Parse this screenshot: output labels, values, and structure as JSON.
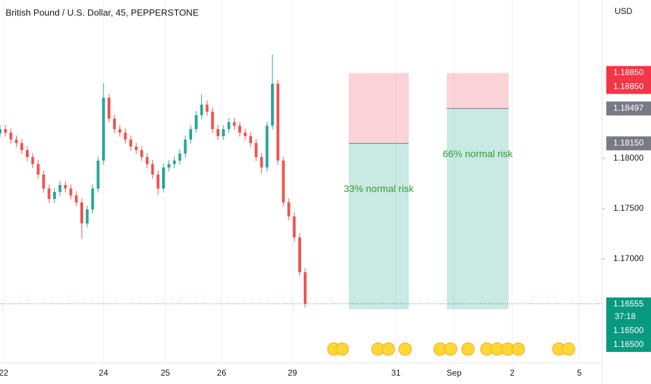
{
  "chart_data": {
    "type": "candlestick",
    "title": "British Pound / U.S. Dollar, 45, PEPPERSTONE",
    "currency": "USD",
    "up_color": "#26a69a",
    "down_color": "#ef5350",
    "grid": true,
    "xlim": [
      0,
      331.5
    ],
    "ylim": [
      1.15965,
      1.19576
    ],
    "xticks": [
      {
        "value": 2,
        "label": "22"
      },
      {
        "value": 57,
        "label": "24"
      },
      {
        "value": 91,
        "label": "25"
      },
      {
        "value": 122,
        "label": "26"
      },
      {
        "value": 161,
        "label": "29"
      },
      {
        "value": 218,
        "label": "31"
      },
      {
        "value": 250,
        "label": "Sep"
      },
      {
        "value": 282,
        "label": "2"
      },
      {
        "value": 319,
        "label": "5"
      }
    ],
    "yticks": [
      {
        "value": 1.17,
        "label": "1.17000"
      },
      {
        "value": 1.175,
        "label": "1.17500"
      },
      {
        "value": 1.18,
        "label": "1.18000"
      }
    ],
    "x": [
      0,
      3,
      6,
      9,
      12,
      15,
      18,
      21,
      24,
      27,
      30,
      33,
      36,
      39,
      42,
      45,
      48,
      51,
      54,
      57,
      60,
      63,
      66,
      69,
      72,
      75,
      78,
      81,
      84,
      87,
      90,
      93,
      96,
      99,
      102,
      105,
      108,
      111,
      114,
      117,
      120,
      123,
      126,
      129,
      132,
      135,
      138,
      141,
      144,
      147,
      150,
      153,
      156,
      159,
      162,
      165,
      168
    ],
    "open": [
      1.1825,
      1.18292,
      1.18257,
      1.18188,
      1.18153,
      1.18083,
      1.18014,
      1.17944,
      1.1784,
      1.17701,
      1.17597,
      1.17667,
      1.17736,
      1.17701,
      1.17632,
      1.17563,
      1.17354,
      1.17493,
      1.17701,
      1.17979,
      1.18604,
      1.18396,
      1.18292,
      1.18257,
      1.18188,
      1.18118,
      1.18083,
      1.18014,
      1.17944,
      1.1784,
      1.17701,
      1.1791,
      1.17944,
      1.17979,
      1.18049,
      1.18188,
      1.18292,
      1.18431,
      1.18535,
      1.18465,
      1.18292,
      1.18222,
      1.18292,
      1.18361,
      1.18326,
      1.18257,
      1.18222,
      1.18153,
      1.18014,
      1.1791,
      1.18326,
      1.18743,
      1.17979,
      1.17563,
      1.17424,
      1.17215,
      1.16868
    ],
    "high": [
      1.18332,
      1.18332,
      1.18297,
      1.18228,
      1.18193,
      1.18123,
      1.18054,
      1.17984,
      1.1788,
      1.17741,
      1.17707,
      1.17776,
      1.17776,
      1.17741,
      1.17672,
      1.17603,
      1.17533,
      1.17741,
      1.18019,
      1.1875,
      1.18644,
      1.18436,
      1.18332,
      1.18297,
      1.18228,
      1.18158,
      1.18123,
      1.18054,
      1.17984,
      1.1788,
      1.1795,
      1.17984,
      1.18019,
      1.18089,
      1.18228,
      1.18332,
      1.18471,
      1.1864,
      1.18575,
      1.18505,
      1.18332,
      1.18332,
      1.18401,
      1.18401,
      1.18366,
      1.18297,
      1.18262,
      1.18193,
      1.18054,
      1.18366,
      1.19035,
      1.18783,
      1.18019,
      1.17603,
      1.17464,
      1.17255,
      1.16908
    ],
    "low": [
      1.1821,
      1.18217,
      1.18148,
      1.18113,
      1.18043,
      1.17974,
      1.17904,
      1.178,
      1.17661,
      1.17557,
      1.17557,
      1.17627,
      1.17661,
      1.17592,
      1.17523,
      1.172,
      1.17314,
      1.17453,
      1.17661,
      1.17939,
      1.18356,
      1.18252,
      1.18217,
      1.18148,
      1.18078,
      1.18043,
      1.17974,
      1.17904,
      1.178,
      1.1764,
      1.17661,
      1.1787,
      1.17904,
      1.17939,
      1.18009,
      1.18148,
      1.18252,
      1.18391,
      1.18425,
      1.18252,
      1.18182,
      1.18182,
      1.18252,
      1.18286,
      1.18217,
      1.18182,
      1.18113,
      1.17974,
      1.1785,
      1.1787,
      1.18286,
      1.17939,
      1.17523,
      1.17384,
      1.17175,
      1.16828,
      1.16515
    ],
    "close": [
      1.18292,
      1.18257,
      1.18188,
      1.18153,
      1.18083,
      1.18014,
      1.17944,
      1.1784,
      1.17701,
      1.17597,
      1.17667,
      1.17736,
      1.17701,
      1.17632,
      1.17563,
      1.17354,
      1.17493,
      1.17701,
      1.17979,
      1.18604,
      1.18396,
      1.18292,
      1.18257,
      1.18188,
      1.18118,
      1.18083,
      1.18014,
      1.17944,
      1.1784,
      1.17701,
      1.1791,
      1.17944,
      1.17979,
      1.18049,
      1.18188,
      1.18292,
      1.18431,
      1.18535,
      1.18465,
      1.18292,
      1.18222,
      1.18292,
      1.18361,
      1.18326,
      1.18257,
      1.18222,
      1.18153,
      1.18014,
      1.1791,
      1.18326,
      1.18743,
      1.17979,
      1.17563,
      1.17424,
      1.17215,
      1.16868,
      1.16555
    ],
    "last_price": {
      "value": 1.16555,
      "label": "1.16555"
    },
    "countdown": "37:18",
    "positions": [
      {
        "label": "33% normal risk",
        "x_start": 192,
        "x_end": 225,
        "stop": {
          "value": 1.1885,
          "label": "1.18850"
        },
        "entry": {
          "value": 1.1815,
          "label": "1.18150"
        },
        "target": {
          "value": 1.165,
          "label": "1.16500"
        }
      },
      {
        "label": "66% normal risk",
        "x_start": 246,
        "x_end": 280,
        "stop": {
          "value": 1.1885,
          "label": "1.18850"
        },
        "entry": {
          "value": 1.18497,
          "label": "1.18497"
        },
        "target": {
          "value": 1.165,
          "label": "1.16500"
        }
      }
    ]
  }
}
